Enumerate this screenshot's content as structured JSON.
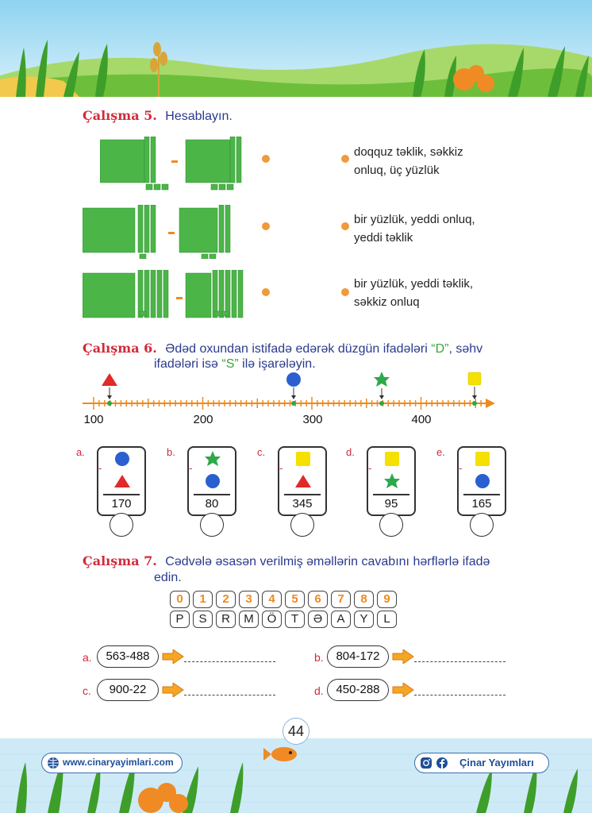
{
  "page_number": "44",
  "exercise5": {
    "label": "Çalışma 5.",
    "instruction": "Hesablayın.",
    "options": [
      {
        "line1": "doqquz təklik, səkkiz",
        "line2": "onluq, üç yüzlük"
      },
      {
        "line1": "bir yüzlük, yeddi onluq,",
        "line2": "yeddi təklik"
      },
      {
        "line1": "bir yüzlük, yeddi təklik,",
        "line2": "səkkiz onluq"
      }
    ]
  },
  "exercise6": {
    "label": "Çalışma 6.",
    "instruction_part1": "Ədəd oxundan istifadə edərək düzgün ifadələri ",
    "quote_d": "“D”",
    "instruction_part2": ", səhv",
    "instruction_line2_part1": "ifadələri isə ",
    "quote_s": "“S”",
    "instruction_line2_part2": " ilə işarələyin.",
    "axis_labels": [
      "100",
      "200",
      "300",
      "400"
    ],
    "markers": [
      {
        "shape": "triangle-icon",
        "color": "#e02a2a"
      },
      {
        "shape": "circle-icon",
        "color": "#2a5fd0"
      },
      {
        "shape": "star-icon",
        "color": "#2ea84a"
      },
      {
        "shape": "square-icon",
        "color": "#f5e000"
      }
    ],
    "cards": [
      {
        "letter": "a.",
        "minus": "-",
        "answer": "170"
      },
      {
        "letter": "b.",
        "minus": "-",
        "answer": "80"
      },
      {
        "letter": "c.",
        "minus": "-",
        "answer": "345"
      },
      {
        "letter": "d.",
        "minus": "-",
        "answer": "95"
      },
      {
        "letter": "e.",
        "minus": "-",
        "answer": "165"
      }
    ]
  },
  "exercise7": {
    "label": "Çalışma 7.",
    "instruction_line1": "Cədvələ əsasən verilmiş əməllərin cavabını hərflərlə ifadə",
    "instruction_line2": "edin.",
    "digits": [
      "0",
      "1",
      "2",
      "3",
      "4",
      "5",
      "6",
      "7",
      "8",
      "9"
    ],
    "letters": [
      "P",
      "S",
      "R",
      "M",
      "Ö",
      "T",
      "Ə",
      "A",
      "Y",
      "L"
    ],
    "tasks": [
      {
        "letter": "a.",
        "expr": "563-488"
      },
      {
        "letter": "b.",
        "expr": "804-172"
      },
      {
        "letter": "c.",
        "expr": "900-22"
      },
      {
        "letter": "d.",
        "expr": "450-288"
      }
    ]
  },
  "footer": {
    "website": "www.cinaryayimlari.com",
    "brand": "Çinar Yayımları"
  }
}
